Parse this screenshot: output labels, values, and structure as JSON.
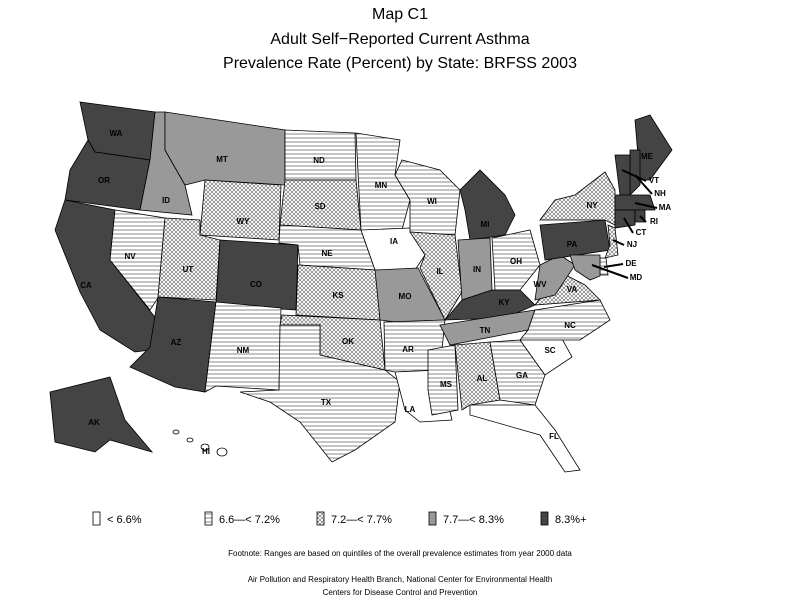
{
  "header": {
    "title": "Map C1",
    "subtitle": "Adult Self−Reported Current Asthma",
    "subtitle2": "Prevalence Rate (Percent) by State: BRFSS 2003"
  },
  "legend": [
    {
      "label": "< 6.6%",
      "fill": "#ffffff"
    },
    {
      "label": "6.6—< 7.2%",
      "fill": "url(#p-lines)"
    },
    {
      "label": "7.2—< 7.7%",
      "fill": "url(#p-cross)"
    },
    {
      "label": "7.7—< 8.3%",
      "fill": "#999999"
    },
    {
      "label": "8.3%+",
      "fill": "#444444"
    }
  ],
  "states": [
    {
      "label": "WA",
      "class": 4
    },
    {
      "label": "OR",
      "class": 4
    },
    {
      "label": "CA",
      "class": 4
    },
    {
      "label": "NV",
      "class": 1
    },
    {
      "label": "ID",
      "class": 3
    },
    {
      "label": "MT",
      "class": 3
    },
    {
      "label": "WY",
      "class": 2
    },
    {
      "label": "UT",
      "class": 2
    },
    {
      "label": "CO",
      "class": 4
    },
    {
      "label": "AZ",
      "class": 4
    },
    {
      "label": "NM",
      "class": 1
    },
    {
      "label": "ND",
      "class": 1
    },
    {
      "label": "SD",
      "class": 2
    },
    {
      "label": "NE",
      "class": 1
    },
    {
      "label": "KS",
      "class": 2
    },
    {
      "label": "OK",
      "class": 2
    },
    {
      "label": "TX",
      "class": 1
    },
    {
      "label": "MN",
      "class": 1
    },
    {
      "label": "IA",
      "class": 0
    },
    {
      "label": "MO",
      "class": 3
    },
    {
      "label": "AR",
      "class": 1
    },
    {
      "label": "LA",
      "class": 0
    },
    {
      "label": "WI",
      "class": 1
    },
    {
      "label": "IL",
      "class": 2
    },
    {
      "label": "MI",
      "class": 4
    },
    {
      "label": "IN",
      "class": 3
    },
    {
      "label": "OH",
      "class": 1
    },
    {
      "label": "KY",
      "class": 4
    },
    {
      "label": "TN",
      "class": 3
    },
    {
      "label": "MS",
      "class": 1
    },
    {
      "label": "AL",
      "class": 2
    },
    {
      "label": "GA",
      "class": 1
    },
    {
      "label": "FL",
      "class": 0
    },
    {
      "label": "SC",
      "class": 0
    },
    {
      "label": "NC",
      "class": 1
    },
    {
      "label": "VA",
      "class": 2
    },
    {
      "label": "WV",
      "class": 3
    },
    {
      "label": "PA",
      "class": 4
    },
    {
      "label": "NY",
      "class": 2
    },
    {
      "label": "ME",
      "class": 4
    },
    {
      "label": "NH",
      "class": 4
    },
    {
      "label": "VT",
      "class": 4
    },
    {
      "label": "MA",
      "class": 4
    },
    {
      "label": "CT",
      "class": 4
    },
    {
      "label": "RI",
      "class": 4
    },
    {
      "label": "NJ",
      "class": 2
    },
    {
      "label": "DE",
      "class": 1
    },
    {
      "label": "MD",
      "class": 3
    },
    {
      "label": "AK",
      "class": 4
    },
    {
      "label": "HI",
      "class": 0
    }
  ],
  "footnote": "Footnote: Ranges are based on quintiles of the overall prevalence estimates from year 2000 data",
  "credits": [
    "Air Pollution and Respiratory Health Branch, National Center for Environmental Health",
    "Centers for Disease Control and Prevention"
  ]
}
